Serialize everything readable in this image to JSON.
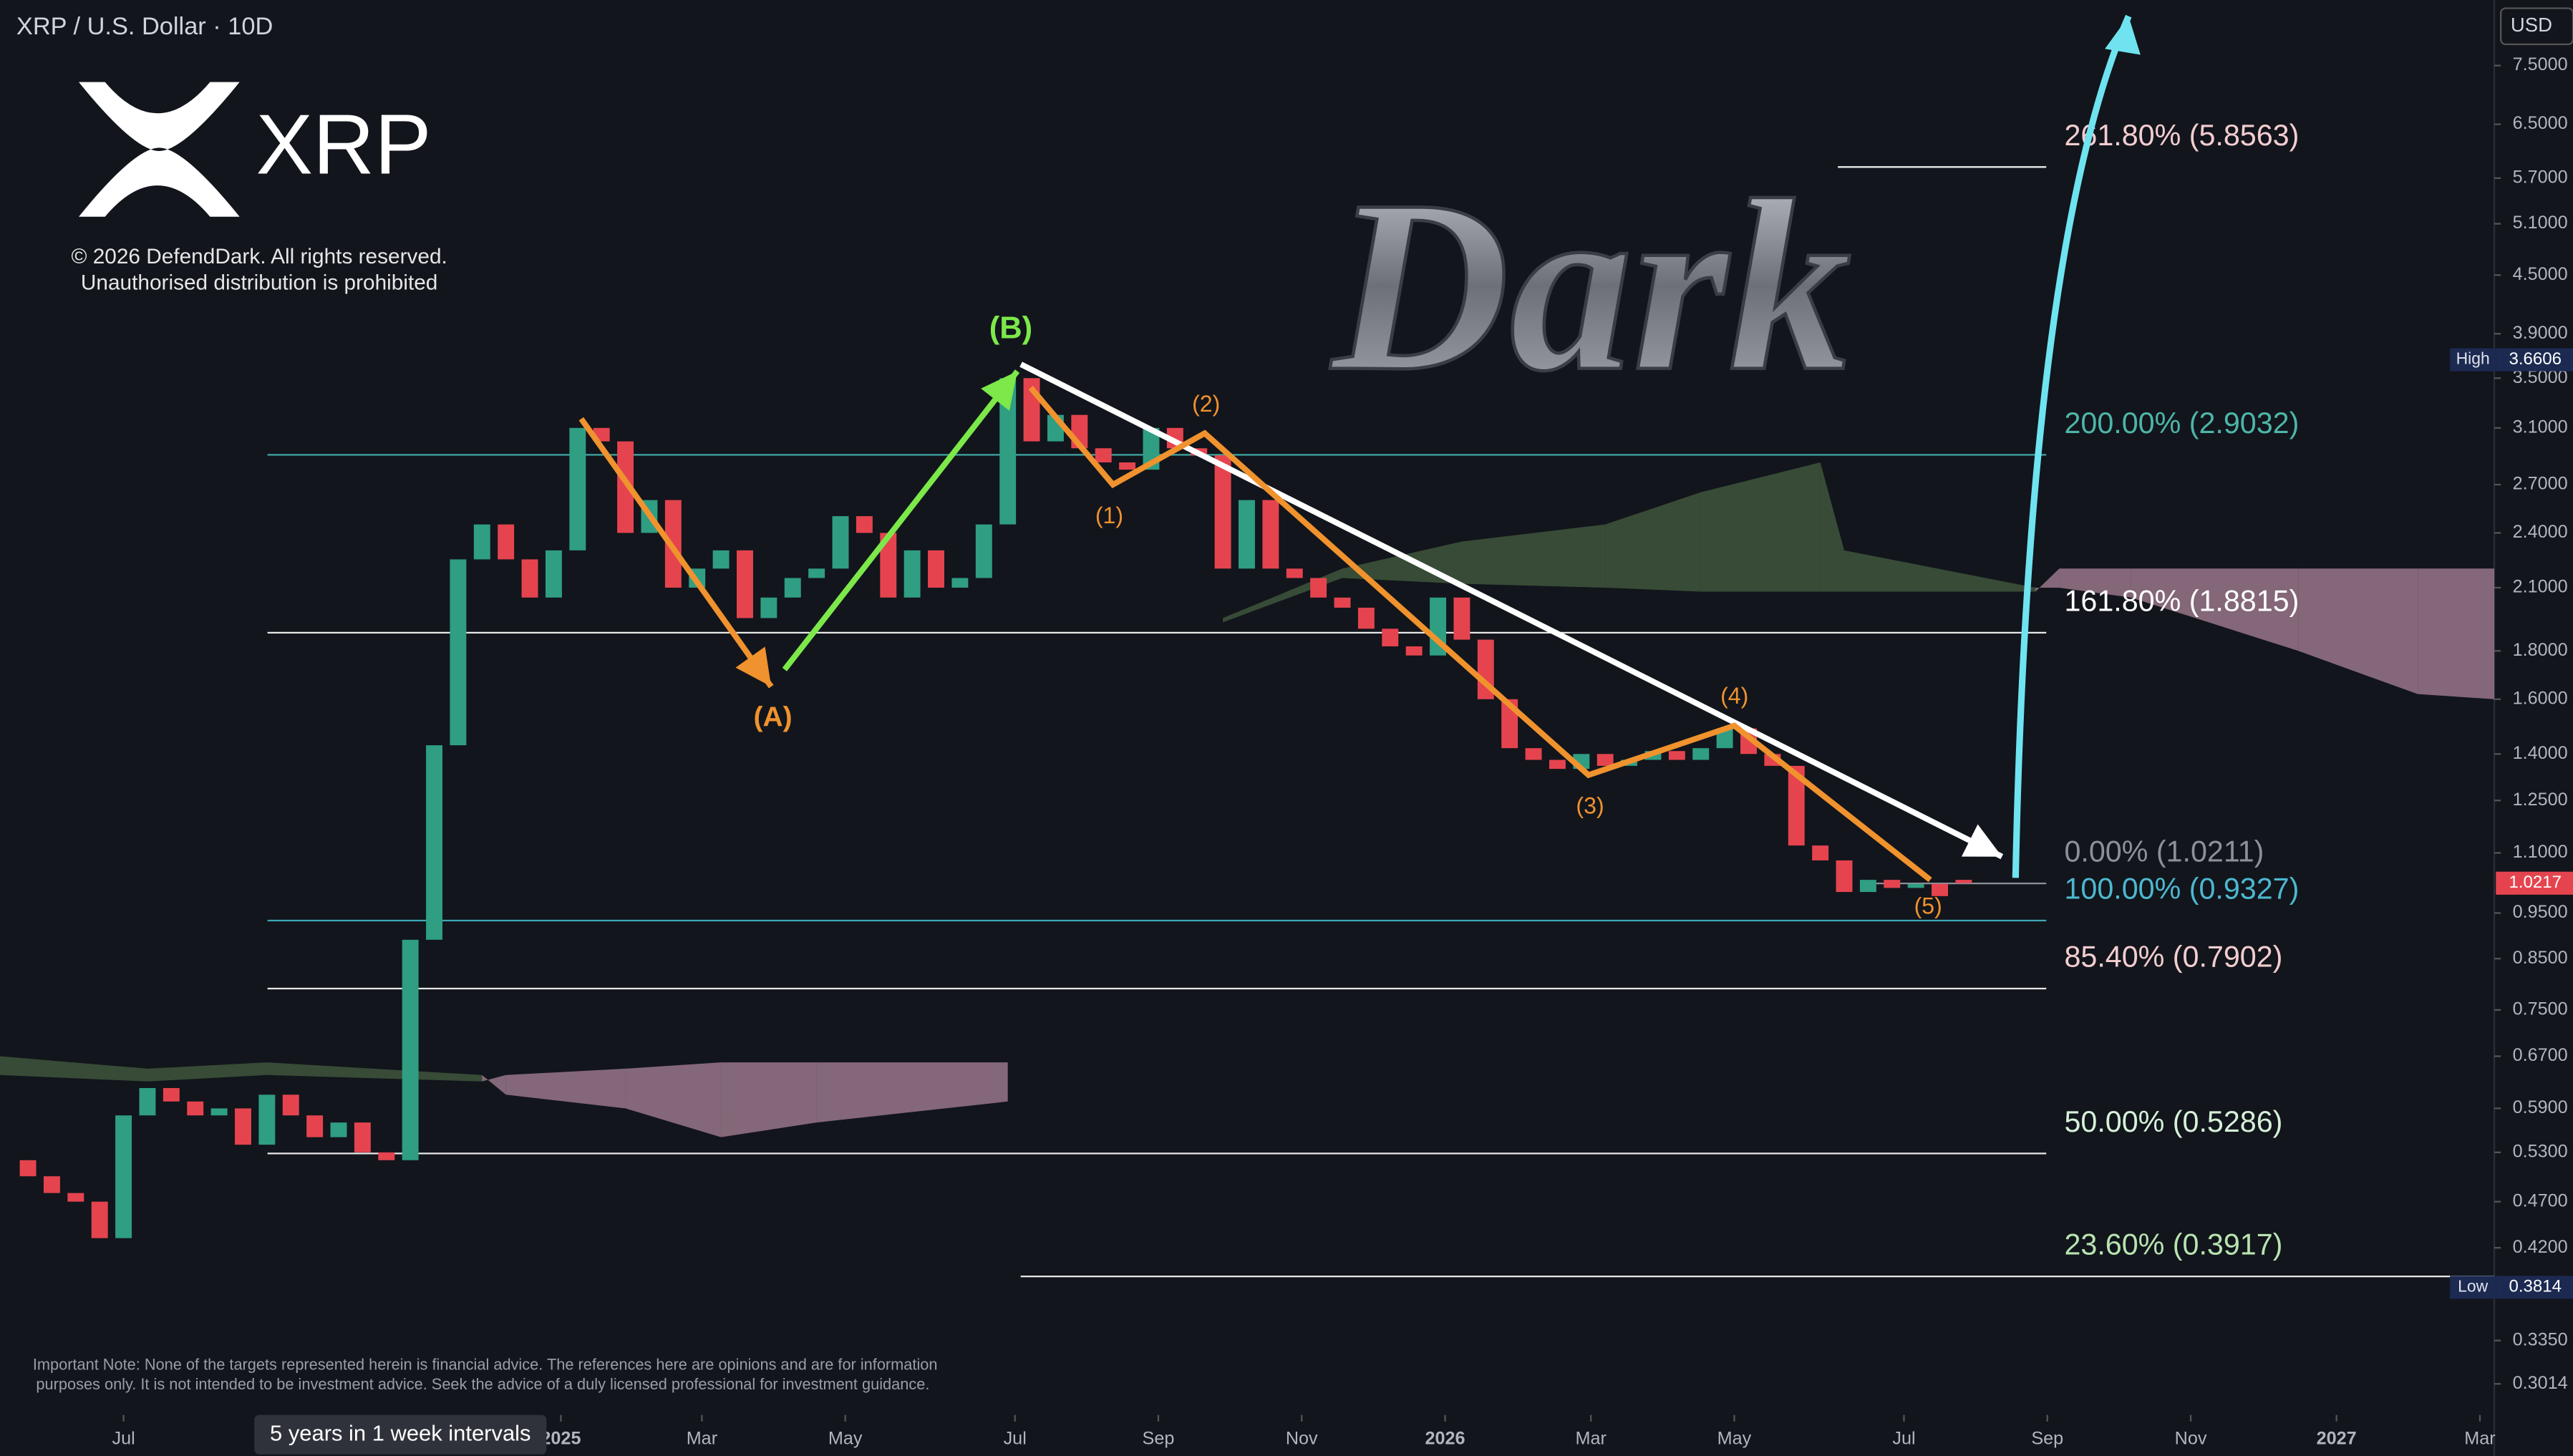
{
  "chart_data": {
    "type": "candlestick",
    "title": "XRP / U.S. Dollar · 10D",
    "currency": "USD",
    "log_scale": true,
    "up_color": "#2f9e83",
    "down_color": "#e5444f",
    "xlim": [
      -1.17,
      103.2
    ],
    "ylim": [
      0.2794,
      8.8
    ],
    "xticks": [
      {
        "value": 4,
        "label": "Jul"
      },
      {
        "value": 22.3,
        "label": "2025"
      },
      {
        "value": 28.2,
        "label": "Mar"
      },
      {
        "value": 34.2,
        "label": "May"
      },
      {
        "value": 41.3,
        "label": "Jul"
      },
      {
        "value": 47.3,
        "label": "Sep"
      },
      {
        "value": 53.3,
        "label": "Nov"
      },
      {
        "value": 59.3,
        "label": "2026"
      },
      {
        "value": 65.4,
        "label": "Mar"
      },
      {
        "value": 71.4,
        "label": "May"
      },
      {
        "value": 78.5,
        "label": "Jul"
      },
      {
        "value": 84.5,
        "label": "Sep"
      },
      {
        "value": 90.5,
        "label": "Nov"
      },
      {
        "value": 96.6,
        "label": "2027"
      },
      {
        "value": 102.6,
        "label": "Mar"
      }
    ],
    "yticks": [
      {
        "value": 7.5,
        "label": "7.5000"
      },
      {
        "value": 6.5,
        "label": "6.5000"
      },
      {
        "value": 5.7,
        "label": "5.7000"
      },
      {
        "value": 5.1,
        "label": "5.1000"
      },
      {
        "value": 4.5,
        "label": "4.5000"
      },
      {
        "value": 3.9,
        "label": "3.9000"
      },
      {
        "value": 3.5,
        "label": "3.5000"
      },
      {
        "value": 3.1,
        "label": "3.1000"
      },
      {
        "value": 2.7,
        "label": "2.7000"
      },
      {
        "value": 2.4,
        "label": "2.4000"
      },
      {
        "value": 2.1,
        "label": "2.1000"
      },
      {
        "value": 1.8,
        "label": "1.8000"
      },
      {
        "value": 1.6,
        "label": "1.6000"
      },
      {
        "value": 1.4,
        "label": "1.4000"
      },
      {
        "value": 1.25,
        "label": "1.2500"
      },
      {
        "value": 1.1,
        "label": "1.1000"
      },
      {
        "value": 0.95,
        "label": "0.9500"
      },
      {
        "value": 0.85,
        "label": "0.8500"
      },
      {
        "value": 0.75,
        "label": "0.7500"
      },
      {
        "value": 0.67,
        "label": "0.6700"
      },
      {
        "value": 0.59,
        "label": "0.5900"
      },
      {
        "value": 0.53,
        "label": "0.5300"
      },
      {
        "value": 0.47,
        "label": "0.4700"
      },
      {
        "value": 0.42,
        "label": "0.4200"
      },
      {
        "value": 0.335,
        "label": "0.3350"
      },
      {
        "value": 0.3014,
        "label": "0.3014"
      }
    ],
    "open": [
      0.52,
      0.5,
      0.48,
      0.47,
      0.43,
      0.58,
      0.62,
      0.6,
      0.58,
      0.59,
      0.54,
      0.61,
      0.58,
      0.55,
      0.57,
      0.53,
      0.52,
      0.89,
      1.43,
      2.25,
      2.45,
      2.25,
      2.05,
      2.3,
      3.1,
      3.0,
      2.4,
      2.6,
      2.1,
      2.2,
      2.3,
      1.95,
      2.05,
      2.15,
      2.2,
      2.5,
      2.4,
      2.05,
      2.3,
      2.1,
      2.15,
      2.45,
      3.5,
      3.0,
      3.2,
      2.95,
      2.85,
      2.8,
      3.1,
      2.95,
      2.9,
      2.2,
      2.6,
      2.2,
      2.15,
      2.05,
      2.0,
      1.9,
      1.82,
      1.78,
      2.05,
      1.85,
      1.6,
      1.42,
      1.38,
      1.35,
      1.4,
      1.36,
      1.38,
      1.41,
      1.38,
      1.42,
      1.49,
      1.4,
      1.36,
      1.12,
      1.08,
      1.0,
      1.03,
      1.01,
      1.02,
      1.03
    ],
    "high": 3.6606,
    "low": 0.3814,
    "close": [
      0.5,
      0.48,
      0.47,
      0.43,
      0.58,
      0.62,
      0.6,
      0.58,
      0.59,
      0.54,
      0.61,
      0.58,
      0.55,
      0.57,
      0.53,
      0.52,
      0.89,
      1.43,
      2.25,
      2.45,
      2.25,
      2.05,
      2.3,
      3.1,
      3.0,
      2.4,
      2.6,
      2.1,
      2.2,
      2.3,
      1.95,
      2.05,
      2.15,
      2.2,
      2.5,
      2.4,
      2.05,
      2.3,
      2.1,
      2.15,
      2.45,
      3.5,
      3.0,
      3.2,
      2.95,
      2.85,
      2.8,
      3.1,
      2.95,
      2.9,
      2.2,
      2.6,
      2.2,
      2.15,
      2.05,
      2.0,
      1.9,
      1.82,
      1.78,
      2.05,
      1.85,
      1.6,
      1.42,
      1.38,
      1.35,
      1.4,
      1.36,
      1.38,
      1.41,
      1.38,
      1.42,
      1.49,
      1.4,
      1.36,
      1.12,
      1.08,
      1.0,
      1.03,
      1.01,
      1.02,
      0.99,
      1.0217
    ],
    "cloud": {
      "up_color": "rgba(80,112,72,0.6)",
      "down_color": "rgba(176,136,158,0.72)",
      "x": [
        -1.17,
        5,
        10,
        19,
        20,
        25,
        29,
        33,
        41,
        null,
        50,
        55,
        60,
        66,
        70,
        75,
        76,
        84,
        85,
        88,
        95,
        100,
        103.2
      ],
      "span_a": [
        0.67,
        0.65,
        0.66,
        0.64,
        0.61,
        0.59,
        0.55,
        0.57,
        0.6,
        null,
        1.95,
        2.2,
        2.35,
        2.45,
        2.65,
        2.85,
        2.3,
        2.1,
        2.1,
        2.05,
        1.8,
        1.62,
        1.6
      ],
      "span_b": [
        0.64,
        0.63,
        0.64,
        0.63,
        0.64,
        0.65,
        0.66,
        0.66,
        0.66,
        null,
        1.93,
        2.15,
        2.12,
        2.1,
        2.08,
        2.08,
        2.08,
        2.08,
        2.2,
        2.2,
        2.2,
        2.2,
        2.2
      ]
    },
    "levels": [
      {
        "label": "261.80% (5.8563)",
        "value": 5.8563,
        "color": "#f3cdd0",
        "line_color": "#e8e8e8"
      },
      {
        "label": "200.00% (2.9032)",
        "value": 2.9032,
        "color": "#4db6a8",
        "line_color": "#3fa7a5"
      },
      {
        "label": "161.80% (1.8815)",
        "value": 1.8815,
        "color": "#ffffff",
        "line_color": "#e8e8e8"
      },
      {
        "label": "0.00% (1.0211)",
        "value": 1.0211,
        "color": "#8d9097",
        "line_color": "#8d9097"
      },
      {
        "label": "100.00% (0.9327)",
        "value": 0.9327,
        "color": "#4cb8cf",
        "line_color": "#3fa7b5"
      },
      {
        "label": "85.40% (0.7902)",
        "value": 0.7902,
        "color": "#f3cdd0",
        "line_color": "#e8e8e8"
      },
      {
        "label": "50.00% (0.5286)",
        "value": 0.5286,
        "color": "#d5f0d8",
        "line_color": "#e8e8e8"
      },
      {
        "label": "23.60% (0.3917)",
        "value": 0.3917,
        "color": "#b7e3b0",
        "line_color": "#e8e8e8"
      }
    ],
    "waves": [
      {
        "color": "#f0922e",
        "arrow": true,
        "x": [
          23.15,
          31.1
        ],
        "y": [
          3.17,
          1.65
        ]
      },
      {
        "color": "#7ce84a",
        "arrow": true,
        "x": [
          31.66,
          41.4
        ],
        "y": [
          1.72,
          3.56
        ]
      },
      {
        "color": "#ffffff",
        "arrow": true,
        "x": [
          41.55,
          82.6
        ],
        "y": [
          3.62,
          1.09
        ]
      },
      {
        "color": "#f0922e",
        "arrow": false,
        "x": [
          41.96,
          45.4,
          49.24,
          65.3,
          71.4,
          79.6
        ],
        "y": [
          3.42,
          2.7,
          3.06,
          1.33,
          1.5,
          1.03
        ]
      },
      {
        "color": "#6fe3f0",
        "arrow": true,
        "curve": true,
        "x": [
          83.17,
          87.9
        ],
        "y": [
          1.035,
          8.46
        ]
      }
    ],
    "wave_labels": [
      "(A)",
      "(B)",
      "(1)",
      "(2)",
      "(3)",
      "(4)",
      "(5)"
    ],
    "high_label": "High",
    "low_label": "Low",
    "last": 1.0217,
    "watermark": "Dark",
    "logo": "XRP",
    "copyright": [
      "© 2026 DefendDark. All rights reserved.",
      "Unauthorised distribution is prohibited"
    ],
    "disclaimer": [
      "Important Note: None of the targets represented herein is financial advice. The references here are opinions and are for information",
      "purposes only. It is not intended to be investment advice. Seek the advice of a duly licensed professional for investment guidance."
    ],
    "range_button": "5 years in 1 week intervals"
  }
}
